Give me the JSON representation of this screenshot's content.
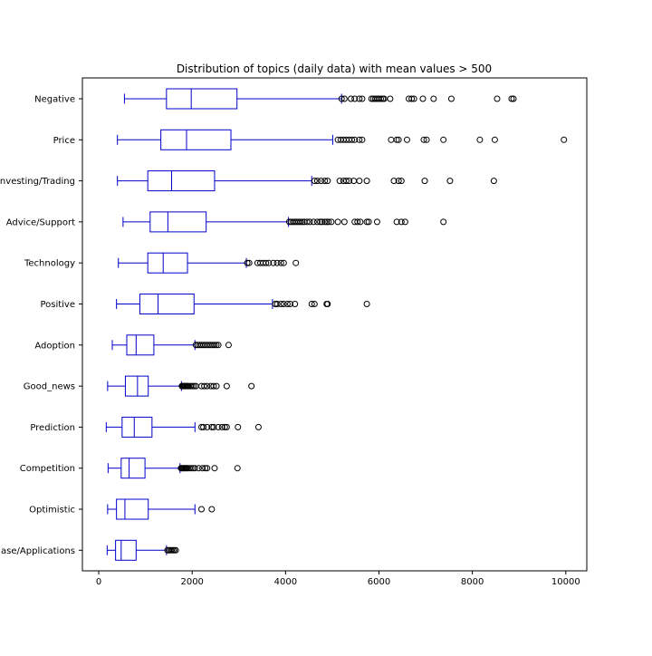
{
  "chart_data": {
    "type": "box",
    "orientation": "horizontal",
    "title": "Distribution of topics (daily data) with mean values > 500",
    "xlabel": "",
    "ylabel": "",
    "xlim": [
      -350,
      10450
    ],
    "xticks": [
      0,
      2000,
      4000,
      6000,
      8000,
      10000
    ],
    "grid": false,
    "legend": "none",
    "colors": {
      "box": "#0000cc",
      "outlier": "#000000",
      "axes": "#000000",
      "background": "#ffffff"
    },
    "categories": [
      "Negative",
      "Price",
      "Investing/Trading",
      "Advice/Support",
      "Technology",
      "Positive",
      "Adoption",
      "Good_news",
      "Prediction",
      "Competition",
      "Optimistic",
      "Use Case/Applications"
    ],
    "category_display": [
      "Negative",
      "Price",
      "Investing/Trading",
      "Advice/Support",
      "Technology",
      "Positive",
      "Adoption",
      "Good_news",
      "Prediction",
      "Competition",
      "Optimistic",
      "ase/Applications"
    ],
    "boxes": [
      {
        "name": "Negative",
        "whisker_low": 550,
        "q1": 1450,
        "median": 1980,
        "q3": 2960,
        "whisker_high": 5200,
        "outliers": [
          5200,
          5260,
          5400,
          5480,
          5580,
          5640,
          5840,
          5880,
          5920,
          5960,
          6000,
          6040,
          6080,
          6110,
          6240,
          6640,
          6700,
          6750,
          6940,
          7170,
          7550,
          8530,
          8840,
          8880
        ]
      },
      {
        "name": "Price",
        "whisker_low": 400,
        "q1": 1330,
        "median": 1880,
        "q3": 2830,
        "whisker_high": 5010,
        "outliers": [
          5120,
          5180,
          5240,
          5300,
          5360,
          5420,
          5480,
          5580,
          5640,
          6260,
          6380,
          6420,
          6600,
          6960,
          7020,
          7380,
          8160,
          8480,
          9960
        ]
      },
      {
        "name": "Investing/Trading",
        "whisker_low": 400,
        "q1": 1050,
        "median": 1560,
        "q3": 2480,
        "whisker_high": 4560,
        "outliers": [
          4620,
          4680,
          4760,
          4840,
          4900,
          5160,
          5240,
          5300,
          5360,
          5460,
          5580,
          5740,
          6320,
          6420,
          6480,
          6980,
          7520,
          8460
        ]
      },
      {
        "name": "Advice/Support",
        "whisker_low": 520,
        "q1": 1100,
        "median": 1480,
        "q3": 2300,
        "whisker_high": 4060,
        "outliers": [
          4080,
          4120,
          4160,
          4200,
          4240,
          4280,
          4320,
          4360,
          4400,
          4460,
          4520,
          4600,
          4680,
          4740,
          4780,
          4840,
          4880,
          4920,
          4980,
          5120,
          5260,
          5480,
          5540,
          5600,
          5740,
          5780,
          5960,
          6380,
          6480,
          6560,
          7380
        ]
      },
      {
        "name": "Technology",
        "whisker_low": 420,
        "q1": 1050,
        "median": 1380,
        "q3": 1900,
        "whisker_high": 3160,
        "outliers": [
          3180,
          3220,
          3400,
          3460,
          3520,
          3580,
          3640,
          3740,
          3820,
          3900,
          3960,
          4220
        ]
      },
      {
        "name": "Positive",
        "whisker_low": 380,
        "q1": 880,
        "median": 1270,
        "q3": 2040,
        "whisker_high": 3720,
        "outliers": [
          3780,
          3820,
          3900,
          3960,
          4040,
          4100,
          4200,
          4560,
          4620,
          4880,
          4900,
          5740
        ]
      },
      {
        "name": "Adoption",
        "whisker_low": 290,
        "q1": 600,
        "median": 800,
        "q3": 1180,
        "whisker_high": 2060,
        "outliers": [
          2080,
          2120,
          2160,
          2200,
          2240,
          2280,
          2320,
          2360,
          2400,
          2440,
          2480,
          2520,
          2560,
          2780
        ]
      },
      {
        "name": "Good_news",
        "whisker_low": 190,
        "q1": 570,
        "median": 830,
        "q3": 1060,
        "whisker_high": 1770,
        "outliers": [
          1780,
          1800,
          1820,
          1840,
          1860,
          1880,
          1900,
          1920,
          1960,
          2000,
          2040,
          2080,
          2200,
          2260,
          2320,
          2400,
          2460,
          2520,
          2740,
          3270
        ]
      },
      {
        "name": "Prediction",
        "whisker_low": 160,
        "q1": 500,
        "median": 760,
        "q3": 1140,
        "whisker_high": 2060,
        "outliers": [
          2200,
          2240,
          2320,
          2420,
          2460,
          2560,
          2640,
          2700,
          2740,
          2980,
          3420
        ]
      },
      {
        "name": "Competition",
        "whisker_low": 200,
        "q1": 480,
        "median": 650,
        "q3": 990,
        "whisker_high": 1740,
        "outliers": [
          1760,
          1780,
          1800,
          1820,
          1840,
          1860,
          1880,
          1900,
          1940,
          1980,
          2020,
          2060,
          2140,
          2220,
          2280,
          2320,
          2480,
          2970
        ]
      },
      {
        "name": "Optimistic",
        "whisker_low": 190,
        "q1": 380,
        "median": 560,
        "q3": 1060,
        "whisker_high": 2060,
        "outliers": [
          2200,
          2420
        ]
      },
      {
        "name": "Use Case/Applications",
        "whisker_low": 180,
        "q1": 360,
        "median": 480,
        "q3": 800,
        "whisker_high": 1450,
        "outliers": [
          1470,
          1500,
          1530,
          1560,
          1590,
          1620,
          1650
        ]
      }
    ]
  }
}
